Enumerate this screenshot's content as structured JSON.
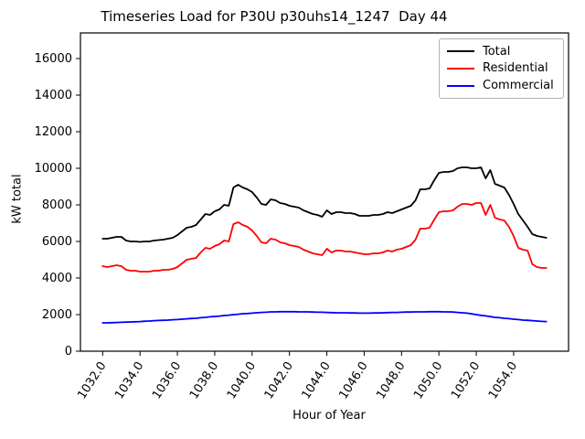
{
  "title": "Timeseries Load for P30U p30uhs14_1247  Day 44",
  "legend": {
    "entries": [
      {
        "label": "Total",
        "color": "#000000"
      },
      {
        "label": "Residential",
        "color": "#ff0000"
      },
      {
        "label": "Commercial",
        "color": "#0000ff"
      }
    ],
    "position": "upper right"
  },
  "chart_data": {
    "type": "line",
    "title": "Timeseries Load for P30U p30uhs14_1247  Day 44",
    "xlabel": "Hour of Year",
    "ylabel": "kW total",
    "xlim": [
      1030.81,
      1056.94
    ],
    "ylim": [
      0,
      17400
    ],
    "grid": false,
    "legend_position": "upper right",
    "x_ticks": {
      "values": [
        1032,
        1034,
        1036,
        1038,
        1040,
        1042,
        1044,
        1046,
        1048,
        1050,
        1052,
        1054
      ],
      "labels": [
        "1032.0",
        "1034.0",
        "1036.0",
        "1038.0",
        "1040.0",
        "1042.0",
        "1044.0",
        "1046.0",
        "1048.0",
        "1050.0",
        "1052.0",
        "1054.0"
      ],
      "rotation_deg": 57
    },
    "y_ticks": {
      "values": [
        0,
        2000,
        4000,
        6000,
        8000,
        10000,
        12000,
        14000,
        16000
      ],
      "labels": [
        "0",
        "2000",
        "4000",
        "6000",
        "8000",
        "10000",
        "12000",
        "14000",
        "16000"
      ]
    },
    "x": [
      1032.0,
      1032.25,
      1032.5,
      1032.75,
      1033.0,
      1033.25,
      1033.5,
      1033.75,
      1034.0,
      1034.25,
      1034.5,
      1034.75,
      1035.0,
      1035.25,
      1035.5,
      1035.75,
      1036.0,
      1036.25,
      1036.5,
      1036.75,
      1037.0,
      1037.25,
      1037.5,
      1037.75,
      1038.0,
      1038.25,
      1038.5,
      1038.75,
      1039.0,
      1039.25,
      1039.5,
      1039.75,
      1040.0,
      1040.25,
      1040.5,
      1040.75,
      1041.0,
      1041.25,
      1041.5,
      1041.75,
      1042.0,
      1042.25,
      1042.5,
      1042.75,
      1043.0,
      1043.25,
      1043.5,
      1043.75,
      1044.0,
      1044.25,
      1044.5,
      1044.75,
      1045.0,
      1045.25,
      1045.5,
      1045.75,
      1046.0,
      1046.25,
      1046.5,
      1046.75,
      1047.0,
      1047.25,
      1047.5,
      1047.75,
      1048.0,
      1048.25,
      1048.5,
      1048.75,
      1049.0,
      1049.25,
      1049.5,
      1049.75,
      1050.0,
      1050.25,
      1050.5,
      1050.75,
      1051.0,
      1051.25,
      1051.5,
      1051.75,
      1052.0,
      1052.25,
      1052.5,
      1052.75,
      1053.0,
      1053.25,
      1053.5,
      1053.75,
      1054.0,
      1054.25,
      1054.5,
      1054.75,
      1055.0,
      1055.25,
      1055.5,
      1055.75
    ],
    "series": [
      {
        "name": "Total",
        "color": "#000000",
        "values": [
          6150,
          6150,
          6200,
          6250,
          6250,
          6050,
          6000,
          6000,
          5975,
          6000,
          6000,
          6050,
          6075,
          6100,
          6150,
          6200,
          6350,
          6550,
          6750,
          6800,
          6900,
          7200,
          7500,
          7450,
          7650,
          7750,
          8000,
          7950,
          8950,
          9100,
          8950,
          8850,
          8700,
          8400,
          8050,
          8000,
          8300,
          8250,
          8100,
          8050,
          7950,
          7900,
          7850,
          7700,
          7600,
          7500,
          7450,
          7350,
          7700,
          7500,
          7600,
          7600,
          7550,
          7550,
          7500,
          7400,
          7400,
          7400,
          7450,
          7450,
          7500,
          7600,
          7550,
          7650,
          7750,
          7850,
          7950,
          8250,
          8850,
          8850,
          8900,
          9350,
          9750,
          9800,
          9800,
          9850,
          10000,
          10050,
          10050,
          10000,
          10000,
          10050,
          9450,
          9900,
          9150,
          9050,
          8950,
          8550,
          8050,
          7500,
          7150,
          6800,
          6400,
          6300,
          6250,
          6200
        ]
      },
      {
        "name": "Residential",
        "color": "#ff0000",
        "values": [
          4650,
          4600,
          4650,
          4700,
          4650,
          4450,
          4400,
          4400,
          4350,
          4350,
          4350,
          4400,
          4400,
          4450,
          4450,
          4500,
          4600,
          4800,
          5000,
          5050,
          5100,
          5400,
          5650,
          5600,
          5750,
          5850,
          6050,
          6000,
          6950,
          7050,
          6900,
          6800,
          6600,
          6300,
          5950,
          5900,
          6150,
          6100,
          5950,
          5900,
          5800,
          5750,
          5700,
          5550,
          5450,
          5350,
          5300,
          5250,
          5600,
          5400,
          5500,
          5500,
          5450,
          5450,
          5400,
          5350,
          5300,
          5300,
          5350,
          5350,
          5400,
          5500,
          5450,
          5550,
          5600,
          5700,
          5800,
          6100,
          6700,
          6700,
          6750,
          7200,
          7600,
          7650,
          7650,
          7700,
          7900,
          8050,
          8050,
          8000,
          8100,
          8100,
          7450,
          8000,
          7300,
          7200,
          7150,
          6800,
          6300,
          5650,
          5550,
          5500,
          4750,
          4600,
          4550,
          4550
        ]
      },
      {
        "name": "Commercial",
        "color": "#0000ff",
        "values": [
          1550,
          1550,
          1560,
          1570,
          1580,
          1590,
          1600,
          1610,
          1620,
          1640,
          1650,
          1670,
          1680,
          1690,
          1700,
          1720,
          1730,
          1750,
          1770,
          1790,
          1800,
          1830,
          1850,
          1880,
          1900,
          1920,
          1950,
          1970,
          2000,
          2020,
          2050,
          2060,
          2080,
          2100,
          2120,
          2130,
          2150,
          2150,
          2160,
          2160,
          2160,
          2160,
          2150,
          2150,
          2150,
          2140,
          2130,
          2130,
          2120,
          2110,
          2100,
          2100,
          2100,
          2090,
          2090,
          2080,
          2080,
          2080,
          2090,
          2090,
          2100,
          2110,
          2120,
          2120,
          2130,
          2140,
          2140,
          2150,
          2150,
          2150,
          2160,
          2160,
          2160,
          2150,
          2150,
          2140,
          2120,
          2100,
          2080,
          2040,
          2000,
          1960,
          1930,
          1890,
          1850,
          1830,
          1800,
          1780,
          1750,
          1730,
          1700,
          1690,
          1670,
          1650,
          1630,
          1620
        ]
      }
    ]
  }
}
